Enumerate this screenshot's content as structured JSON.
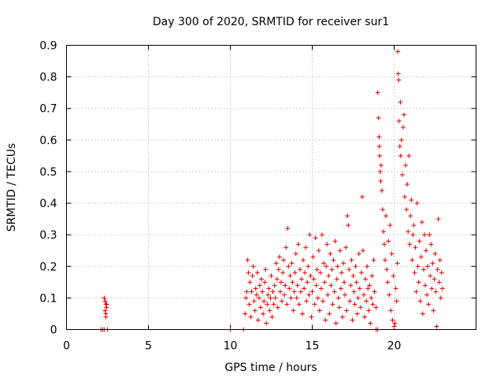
{
  "chart_data": {
    "type": "scatter",
    "title": "Day 300 of 2020, SRMTID for receiver sur1",
    "xlabel": "GPS time / hours",
    "ylabel": "SRMTID / TECUs",
    "xlim": [
      0,
      25
    ],
    "ylim": [
      0,
      0.9
    ],
    "xticks": [
      0,
      5,
      10,
      15,
      20
    ],
    "xtick_labels": [
      "0",
      "5",
      "10",
      "15",
      "20"
    ],
    "yticks": [
      0,
      0.1,
      0.2,
      0.3,
      0.4,
      0.5,
      0.6,
      0.7,
      0.8,
      0.9
    ],
    "ytick_labels": [
      "0",
      "0.1",
      "0.2",
      "0.3",
      "0.4",
      "0.5",
      "0.6",
      "0.7",
      "0.8",
      "0.9"
    ],
    "grid": true,
    "marker": "+",
    "color": "#e00000",
    "series": [
      {
        "name": "sur1",
        "points": [
          [
            2.1,
            0
          ],
          [
            2.2,
            0
          ],
          [
            2.3,
            0
          ],
          [
            2.5,
            0
          ],
          [
            2.3,
            0.1
          ],
          [
            2.35,
            0.09
          ],
          [
            2.4,
            0.08
          ],
          [
            2.45,
            0.07
          ],
          [
            2.35,
            0.06
          ],
          [
            2.4,
            0.05
          ],
          [
            2.45,
            0.08
          ],
          [
            2.4,
            0.04
          ],
          [
            10.0,
            0
          ],
          [
            10.8,
            0
          ],
          [
            18.9,
            0
          ],
          [
            19.0,
            0
          ],
          [
            10.9,
            0.05
          ],
          [
            10.95,
            0.1
          ],
          [
            11.0,
            0.12
          ],
          [
            11.05,
            0.22
          ],
          [
            11.1,
            0.18
          ],
          [
            11.15,
            0.08
          ],
          [
            11.2,
            0.15
          ],
          [
            11.25,
            0.04
          ],
          [
            11.3,
            0.12
          ],
          [
            11.35,
            0.17
          ],
          [
            11.4,
            0.2
          ],
          [
            11.45,
            0.09
          ],
          [
            11.5,
            0.06
          ],
          [
            11.55,
            0.13
          ],
          [
            11.6,
            0.11
          ],
          [
            11.65,
            0.18
          ],
          [
            11.7,
            0.03
          ],
          [
            11.75,
            0.1
          ],
          [
            11.8,
            0.14
          ],
          [
            11.85,
            0.07
          ],
          [
            11.9,
            0.16
          ],
          [
            11.95,
            0.12
          ],
          [
            12.0,
            0.05
          ],
          [
            12.05,
            0.09
          ],
          [
            12.1,
            0.15
          ],
          [
            12.15,
            0.19
          ],
          [
            12.2,
            0.02
          ],
          [
            12.25,
            0.08
          ],
          [
            12.3,
            0.11
          ],
          [
            12.35,
            0.13
          ],
          [
            12.4,
            0.06
          ],
          [
            12.45,
            0.1
          ],
          [
            12.5,
            0.17
          ],
          [
            12.55,
            0.04
          ],
          [
            12.6,
            0.12
          ],
          [
            12.65,
            0.08
          ],
          [
            12.7,
            0.14
          ],
          [
            12.75,
            0.1
          ],
          [
            12.8,
            0.21
          ],
          [
            12.85,
            0.16
          ],
          [
            12.9,
            0.07
          ],
          [
            12.95,
            0.19
          ],
          [
            13.0,
            0.23
          ],
          [
            13.05,
            0.12
          ],
          [
            13.1,
            0.15
          ],
          [
            13.15,
            0.09
          ],
          [
            13.2,
            0.18
          ],
          [
            13.25,
            0.22
          ],
          [
            13.3,
            0.11
          ],
          [
            13.35,
            0.14
          ],
          [
            13.4,
            0.26
          ],
          [
            13.45,
            0.08
          ],
          [
            13.5,
            0.32
          ],
          [
            13.55,
            0.2
          ],
          [
            13.6,
            0.13
          ],
          [
            13.65,
            0.17
          ],
          [
            13.7,
            0.1
          ],
          [
            13.75,
            0.21
          ],
          [
            13.8,
            0.15
          ],
          [
            13.85,
            0.06
          ],
          [
            13.9,
            0.12
          ],
          [
            13.95,
            0.18
          ],
          [
            14.0,
            0.24
          ],
          [
            14.05,
            0.1
          ],
          [
            14.1,
            0.14
          ],
          [
            14.15,
            0.27
          ],
          [
            14.2,
            0.08
          ],
          [
            14.25,
            0.19
          ],
          [
            14.3,
            0.12
          ],
          [
            14.35,
            0.16
          ],
          [
            14.4,
            0.05
          ],
          [
            14.45,
            0.22
          ],
          [
            14.5,
            0.13
          ],
          [
            14.55,
            0.18
          ],
          [
            14.6,
            0.26
          ],
          [
            14.65,
            0.09
          ],
          [
            14.7,
            0.15
          ],
          [
            14.75,
            0.2
          ],
          [
            14.8,
            0.11
          ],
          [
            14.85,
            0.3
          ],
          [
            14.9,
            0.17
          ],
          [
            14.95,
            0.04
          ],
          [
            15.0,
            0.12
          ],
          [
            15.05,
            0.23
          ],
          [
            15.1,
            0.16
          ],
          [
            15.15,
            0.08
          ],
          [
            15.2,
            0.29
          ],
          [
            15.25,
            0.14
          ],
          [
            15.3,
            0.19
          ],
          [
            15.35,
            0.1
          ],
          [
            15.4,
            0.25
          ],
          [
            15.45,
            0.06
          ],
          [
            15.5,
            0.18
          ],
          [
            15.55,
            0.13
          ],
          [
            15.6,
            0.3
          ],
          [
            15.65,
            0.09
          ],
          [
            15.7,
            0.21
          ],
          [
            15.75,
            0.15
          ],
          [
            15.8,
            0.03
          ],
          [
            15.85,
            0.2
          ],
          [
            15.9,
            0.27
          ],
          [
            15.95,
            0.11
          ],
          [
            16.0,
            0.17
          ],
          [
            16.05,
            0.05
          ],
          [
            16.1,
            0.24
          ],
          [
            16.15,
            0.14
          ],
          [
            16.2,
            0.19
          ],
          [
            16.25,
            0.08
          ],
          [
            16.3,
            0.22
          ],
          [
            16.35,
            0.12
          ],
          [
            16.4,
            0.28
          ],
          [
            16.45,
            0.02
          ],
          [
            16.5,
            0.16
          ],
          [
            16.55,
            0.2
          ],
          [
            16.6,
            0.1
          ],
          [
            16.65,
            0.07
          ],
          [
            16.7,
            0.25
          ],
          [
            16.75,
            0.13
          ],
          [
            16.8,
            0.18
          ],
          [
            16.85,
            0.04
          ],
          [
            16.9,
            0.21
          ],
          [
            16.95,
            0.15
          ],
          [
            17.0,
            0.11
          ],
          [
            17.05,
            0.26
          ],
          [
            17.1,
            0.06
          ],
          [
            17.15,
            0.36
          ],
          [
            17.2,
            0.33
          ],
          [
            17.25,
            0.19
          ],
          [
            17.3,
            0.09
          ],
          [
            17.35,
            0.14
          ],
          [
            17.4,
            0.22
          ],
          [
            17.45,
            0.03
          ],
          [
            17.5,
            0.17
          ],
          [
            17.55,
            0.12
          ],
          [
            17.6,
            0.08
          ],
          [
            17.65,
            0.2
          ],
          [
            17.7,
            0.15
          ],
          [
            17.75,
            0.05
          ],
          [
            17.8,
            0.1
          ],
          [
            17.85,
            0.24
          ],
          [
            17.9,
            0.13
          ],
          [
            17.95,
            0.07
          ],
          [
            18.0,
            0.18
          ],
          [
            18.05,
            0.42
          ],
          [
            18.1,
            0.25
          ],
          [
            18.15,
            0.11
          ],
          [
            18.2,
            0.04
          ],
          [
            18.25,
            0.16
          ],
          [
            18.3,
            0.09
          ],
          [
            18.35,
            0.2
          ],
          [
            18.4,
            0.13
          ],
          [
            18.45,
            0.06
          ],
          [
            18.5,
            0.14
          ],
          [
            18.55,
            0.02
          ],
          [
            18.6,
            0.1
          ],
          [
            18.65,
            0.17
          ],
          [
            18.7,
            0.08
          ],
          [
            18.75,
            0.22
          ],
          [
            18.8,
            0.12
          ],
          [
            18.9,
            0.07
          ],
          [
            19.0,
            0.75
          ],
          [
            19.05,
            0.67
          ],
          [
            19.08,
            0.61
          ],
          [
            19.1,
            0.58
          ],
          [
            19.12,
            0.55
          ],
          [
            19.15,
            0.5
          ],
          [
            19.18,
            0.47
          ],
          [
            19.2,
            0.52
          ],
          [
            19.25,
            0.44
          ],
          [
            19.3,
            0.38
          ],
          [
            19.35,
            0.31
          ],
          [
            19.4,
            0.27
          ],
          [
            19.45,
            0.22
          ],
          [
            19.5,
            0.36
          ],
          [
            19.55,
            0.19
          ],
          [
            19.6,
            0.15
          ],
          [
            19.65,
            0.28
          ],
          [
            19.7,
            0.11
          ],
          [
            19.75,
            0.33
          ],
          [
            19.8,
            0.06
          ],
          [
            19.85,
            0.24
          ],
          [
            19.9,
            0.03
          ],
          [
            19.95,
            0.17
          ],
          [
            20.0,
            0.01
          ],
          [
            20.05,
            0.02
          ],
          [
            20.1,
            0.13
          ],
          [
            20.15,
            0.09
          ],
          [
            20.2,
            0.21
          ],
          [
            20.22,
            0.88
          ],
          [
            20.25,
            0.81
          ],
          [
            20.28,
            0.79
          ],
          [
            20.3,
            0.66
          ],
          [
            20.35,
            0.58
          ],
          [
            20.38,
            0.72
          ],
          [
            20.4,
            0.55
          ],
          [
            20.45,
            0.6
          ],
          [
            20.5,
            0.49
          ],
          [
            20.55,
            0.64
          ],
          [
            20.6,
            0.68
          ],
          [
            20.65,
            0.42
          ],
          [
            20.7,
            0.52
          ],
          [
            20.75,
            0.38
          ],
          [
            20.8,
            0.46
          ],
          [
            20.85,
            0.31
          ],
          [
            20.9,
            0.55
          ],
          [
            20.95,
            0.27
          ],
          [
            21.0,
            0.36
          ],
          [
            21.05,
            0.41
          ],
          [
            21.1,
            0.22
          ],
          [
            21.15,
            0.3
          ],
          [
            21.2,
            0.33
          ],
          [
            21.25,
            0.18
          ],
          [
            21.3,
            0.26
          ],
          [
            21.35,
            0.12
          ],
          [
            21.4,
            0.4
          ],
          [
            21.45,
            0.2
          ],
          [
            21.5,
            0.15
          ],
          [
            21.55,
            0.28
          ],
          [
            21.6,
            0.09
          ],
          [
            21.65,
            0.23
          ],
          [
            21.7,
            0.34
          ],
          [
            21.75,
            0.05
          ],
          [
            21.8,
            0.19
          ],
          [
            21.85,
            0.3
          ],
          [
            21.9,
            0.14
          ],
          [
            21.95,
            0.25
          ],
          [
            22.0,
            0.11
          ],
          [
            22.05,
            0.2
          ],
          [
            22.1,
            0.08
          ],
          [
            22.15,
            0.3
          ],
          [
            22.2,
            0.17
          ],
          [
            22.25,
            0.27
          ],
          [
            22.3,
            0.13
          ],
          [
            22.35,
            0.21
          ],
          [
            22.4,
            0.06
          ],
          [
            22.45,
            0.16
          ],
          [
            22.5,
            0.24
          ],
          [
            22.55,
            0.12
          ],
          [
            22.6,
            0.01
          ],
          [
            22.65,
            0.19
          ],
          [
            22.7,
            0.35
          ],
          [
            22.75,
            0.15
          ],
          [
            22.8,
            0.22
          ],
          [
            22.85,
            0.1
          ],
          [
            22.9,
            0.18
          ],
          [
            22.95,
            0.13
          ]
        ]
      }
    ]
  }
}
